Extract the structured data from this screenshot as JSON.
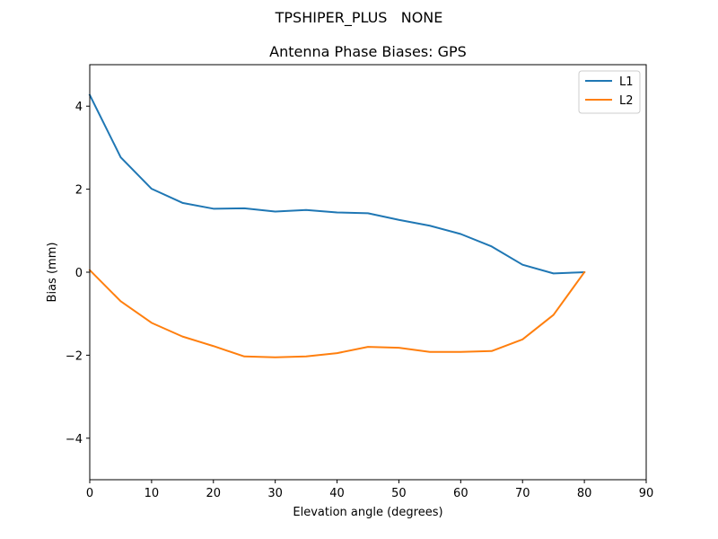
{
  "chart_data": {
    "type": "line",
    "suptitle": "TPSHIPER_PLUS   NONE",
    "title": "Antenna Phase Biases: GPS",
    "xlabel": "Elevation angle (degrees)",
    "ylabel": "Bias (mm)",
    "xlim": [
      0,
      90
    ],
    "ylim": [
      -5,
      5
    ],
    "xticks": [
      0,
      10,
      20,
      30,
      40,
      50,
      60,
      70,
      80,
      90
    ],
    "yticks": [
      -4,
      -2,
      0,
      2,
      4
    ],
    "xtick_labels": [
      "0",
      "10",
      "20",
      "30",
      "40",
      "50",
      "60",
      "70",
      "80",
      "90"
    ],
    "ytick_labels": [
      "−4",
      "−2",
      "0",
      "2",
      "4"
    ],
    "grid": false,
    "legend_position": "top-right",
    "x": [
      0,
      5,
      10,
      15,
      20,
      25,
      30,
      35,
      40,
      45,
      50,
      55,
      60,
      65,
      70,
      75,
      80
    ],
    "series": [
      {
        "name": "L1",
        "color": "#1f77b4",
        "values": [
          4.27,
          2.77,
          2.01,
          1.67,
          1.53,
          1.54,
          1.46,
          1.5,
          1.44,
          1.42,
          1.26,
          1.12,
          0.92,
          0.62,
          0.18,
          -0.03,
          0.0
        ]
      },
      {
        "name": "L2",
        "color": "#ff7f0e",
        "values": [
          0.05,
          -0.7,
          -1.22,
          -1.55,
          -1.78,
          -2.03,
          -2.05,
          -2.03,
          -1.95,
          -1.8,
          -1.82,
          -1.92,
          -1.92,
          -1.9,
          -1.62,
          -1.03,
          0.0
        ]
      }
    ]
  }
}
